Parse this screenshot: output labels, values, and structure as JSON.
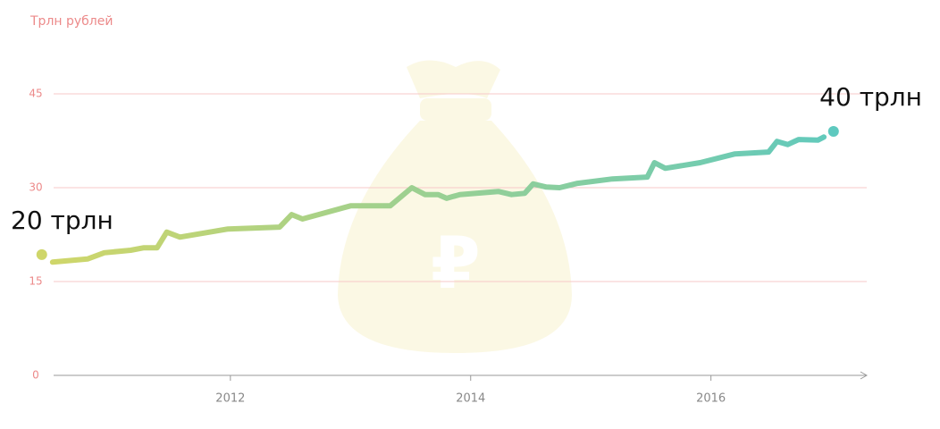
{
  "chart_data": {
    "type": "line",
    "title": "Трлн рублей",
    "x": [
      2010.52,
      2010.81,
      2010.95,
      2011.17,
      2011.28,
      2011.39,
      2011.47,
      2011.58,
      2011.98,
      2012.41,
      2012.51,
      2012.6,
      2013.0,
      2013.33,
      2013.51,
      2013.62,
      2013.73,
      2013.8,
      2013.91,
      2014.23,
      2014.34,
      2014.45,
      2014.52,
      2014.63,
      2014.74,
      2014.89,
      2015.18,
      2015.47,
      2015.53,
      2015.62,
      2015.91,
      2016.2,
      2016.48,
      2016.55,
      2016.64,
      2016.73,
      2016.89,
      2016.94
    ],
    "values": [
      18.1,
      18.6,
      19.6,
      20.0,
      20.4,
      20.4,
      22.9,
      22.1,
      23.4,
      23.7,
      25.7,
      25.0,
      27.1,
      27.1,
      30.0,
      28.9,
      28.9,
      28.3,
      28.9,
      29.4,
      28.9,
      29.1,
      30.6,
      30.1,
      30.0,
      30.7,
      31.4,
      31.7,
      34.0,
      33.1,
      34.0,
      35.4,
      35.7,
      37.4,
      36.9,
      37.7,
      37.6,
      38.1
    ],
    "color_start": "#cfd66a",
    "color_end": "#5ec9bf",
    "annotations": [
      {
        "text": "20 трлн",
        "x": 2010.43,
        "y": 19.3,
        "color": "#cfd66a"
      },
      {
        "text": "40 трлн",
        "x": 2017.02,
        "y": 39.0,
        "color": "#5ec9bf"
      }
    ],
    "xlim": [
      2010.35,
      2017.2
    ],
    "xticks": [
      2012,
      2014,
      2016
    ],
    "ylim": [
      0,
      45
    ],
    "yticks": [
      0,
      15,
      30,
      45
    ],
    "grid": true
  }
}
